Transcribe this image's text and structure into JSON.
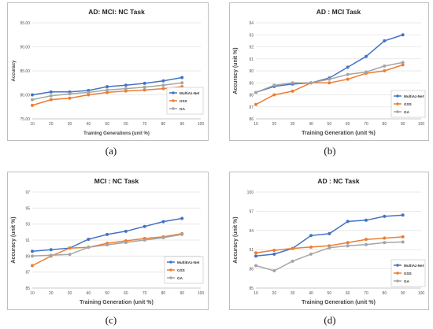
{
  "panel_labels": [
    "(a)",
    "(b)",
    "(c)",
    "(d)"
  ],
  "chart_data": [
    {
      "type": "line",
      "title": "AD: MCI: NC Task",
      "xlabel": "Training Generations (unit %)",
      "ylabel": "Accuracy",
      "x": [
        10,
        20,
        30,
        40,
        50,
        60,
        70,
        80,
        90
      ],
      "xticks": [
        "10",
        "20",
        "30",
        "40",
        "50",
        "60",
        "70",
        "80",
        "90",
        "100"
      ],
      "xlim": [
        10,
        100
      ],
      "ylim": [
        75,
        95
      ],
      "yticks": [
        "75.00",
        "80.00",
        "85.00",
        "90.00",
        "95.00"
      ],
      "grid": true,
      "legend_position": "bottom-right",
      "series": [
        {
          "name": "MultiAz-Net",
          "color": "#4472c4",
          "values": [
            80.0,
            80.6,
            80.6,
            80.9,
            81.7,
            82.0,
            82.4,
            82.9,
            83.6
          ]
        },
        {
          "name": "GSS",
          "color": "#ed7d31",
          "values": [
            77.8,
            79.0,
            79.3,
            80.0,
            80.5,
            80.8,
            81.0,
            81.3,
            81.7
          ]
        },
        {
          "name": "GA",
          "color": "#a5a5a5",
          "values": [
            79.0,
            79.8,
            80.2,
            80.5,
            81.0,
            81.3,
            81.6,
            82.0,
            82.5
          ]
        }
      ]
    },
    {
      "type": "line",
      "title": "AD : MCI Task",
      "xlabel": "Training Generation (unit %)",
      "ylabel": "Accuracy (unit %)",
      "x": [
        10,
        20,
        30,
        40,
        50,
        60,
        70,
        80,
        90
      ],
      "xticks": [
        "10",
        "20",
        "30",
        "40",
        "50",
        "60",
        "70",
        "80",
        "90",
        "100"
      ],
      "xlim": [
        10,
        100
      ],
      "ylim": [
        86,
        94
      ],
      "yticks": [
        "86",
        "87",
        "88",
        "89",
        "90",
        "91",
        "92",
        "93",
        "94"
      ],
      "grid": true,
      "legend_position": "bottom-right",
      "series": [
        {
          "name": "MultiAz-Net",
          "color": "#4472c4",
          "values": [
            88.2,
            88.7,
            88.9,
            89.0,
            89.4,
            90.3,
            91.2,
            92.5,
            93.0
          ]
        },
        {
          "name": "GSS",
          "color": "#ed7d31",
          "values": [
            87.2,
            88.0,
            88.3,
            89.0,
            89.0,
            89.3,
            89.8,
            90.0,
            90.5
          ]
        },
        {
          "name": "GA",
          "color": "#a5a5a5",
          "values": [
            88.2,
            88.8,
            89.0,
            89.0,
            89.3,
            89.7,
            89.9,
            90.4,
            90.7
          ]
        }
      ]
    },
    {
      "type": "line",
      "title": "MCI : NC Task",
      "xlabel": "Training Generation (unit %)",
      "ylabel": "Accuracy (unit %)",
      "x": [
        10,
        20,
        30,
        40,
        50,
        60,
        70,
        80,
        90
      ],
      "xticks": [
        "10",
        "20",
        "30",
        "40",
        "50",
        "60",
        "70",
        "80",
        "90",
        "100"
      ],
      "xlim": [
        10,
        100
      ],
      "ylim": [
        85,
        97
      ],
      "yticks": [
        "85",
        "87",
        "89",
        "91",
        "93",
        "95",
        "97"
      ],
      "grid": true,
      "legend_position": "bottom-right",
      "series": [
        {
          "name": "MultiEAz-Net",
          "color": "#4472c4",
          "values": [
            89.6,
            89.8,
            90.0,
            91.1,
            91.7,
            92.1,
            92.7,
            93.3,
            93.7
          ]
        },
        {
          "name": "GSS",
          "color": "#ed7d31",
          "values": [
            87.8,
            89.0,
            90.0,
            90.1,
            90.6,
            90.9,
            91.2,
            91.4,
            91.8
          ]
        },
        {
          "name": "GA",
          "color": "#a5a5a5",
          "values": [
            89.0,
            89.1,
            89.2,
            90.1,
            90.4,
            90.7,
            91.0,
            91.3,
            91.7
          ]
        }
      ]
    },
    {
      "type": "line",
      "title": "AD : NC Task",
      "xlabel": "Training Generation (unit %)",
      "ylabel": "Accuracy (unit %)",
      "x": [
        10,
        20,
        30,
        40,
        50,
        60,
        70,
        80,
        90
      ],
      "xticks": [
        "10",
        "20",
        "30",
        "40",
        "50",
        "60",
        "70",
        "80",
        "90",
        "100"
      ],
      "xlim": [
        10,
        100
      ],
      "ylim": [
        85,
        100
      ],
      "yticks": [
        "85",
        "88",
        "91",
        "94",
        "97",
        "100"
      ],
      "grid": true,
      "legend_position": "bottom-right",
      "series": [
        {
          "name": "MultiAz-Net",
          "color": "#4472c4",
          "values": [
            90.0,
            90.3,
            91.2,
            93.2,
            93.5,
            95.4,
            95.6,
            96.2,
            96.4
          ]
        },
        {
          "name": "GSS",
          "color": "#ed7d31",
          "values": [
            90.5,
            90.9,
            91.2,
            91.4,
            91.6,
            92.1,
            92.6,
            92.8,
            93.0
          ]
        },
        {
          "name": "GA",
          "color": "#a5a5a5",
          "values": [
            88.5,
            87.7,
            89.2,
            90.3,
            91.3,
            91.6,
            91.8,
            92.1,
            92.2
          ]
        }
      ]
    }
  ]
}
